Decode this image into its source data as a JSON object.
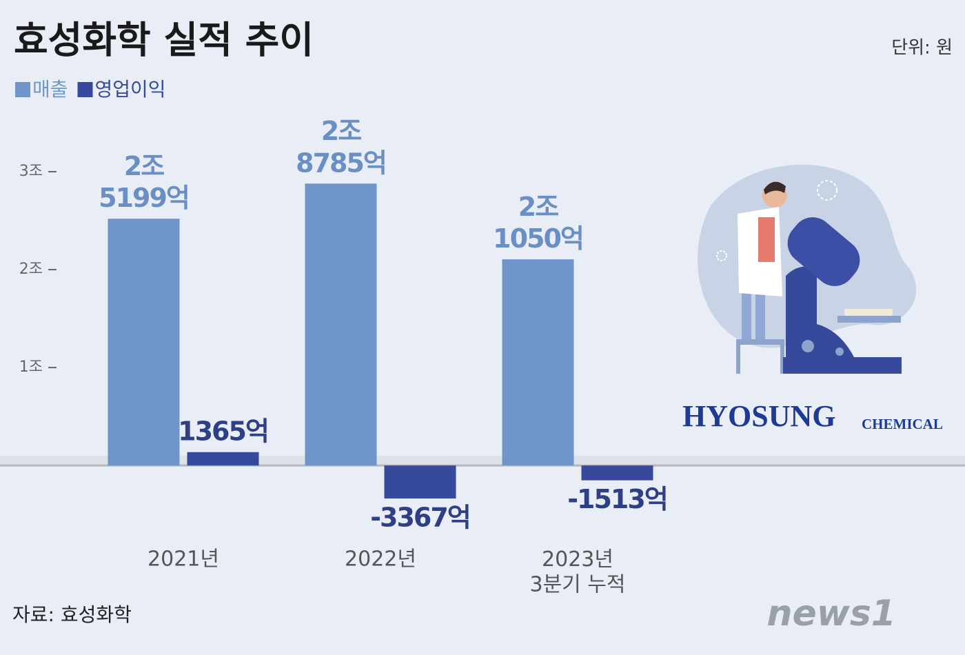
{
  "chart_data": {
    "type": "bar",
    "title": "효성화학 실적 추이",
    "unit_note": "단위: 원",
    "source": "자료: 효성화학",
    "categories": [
      "2021년",
      "2022년",
      "2023년\n3분기 누적"
    ],
    "series": [
      {
        "name": "매출",
        "color": "#7096c9",
        "values": [
          2.5199,
          2.8785,
          2.105
        ],
        "value_labels": [
          "2조\n5199억",
          "2조\n8785억",
          "2조\n1050억"
        ]
      },
      {
        "name": "영업이익",
        "color": "#36499a",
        "values": [
          0.1365,
          -0.3367,
          -0.1513
        ],
        "value_labels": [
          "1365억",
          "-3367억",
          "-1513억"
        ]
      }
    ],
    "ylim": [
      -1.4,
      3.5
    ],
    "yticks": [
      {
        "value": 1,
        "label": "1조"
      },
      {
        "value": 2,
        "label": "2조"
      },
      {
        "value": 3,
        "label": "3조"
      }
    ],
    "logo": "HYOSUNG",
    "logo_sub": "CHEMICAL",
    "brand": "news1"
  }
}
